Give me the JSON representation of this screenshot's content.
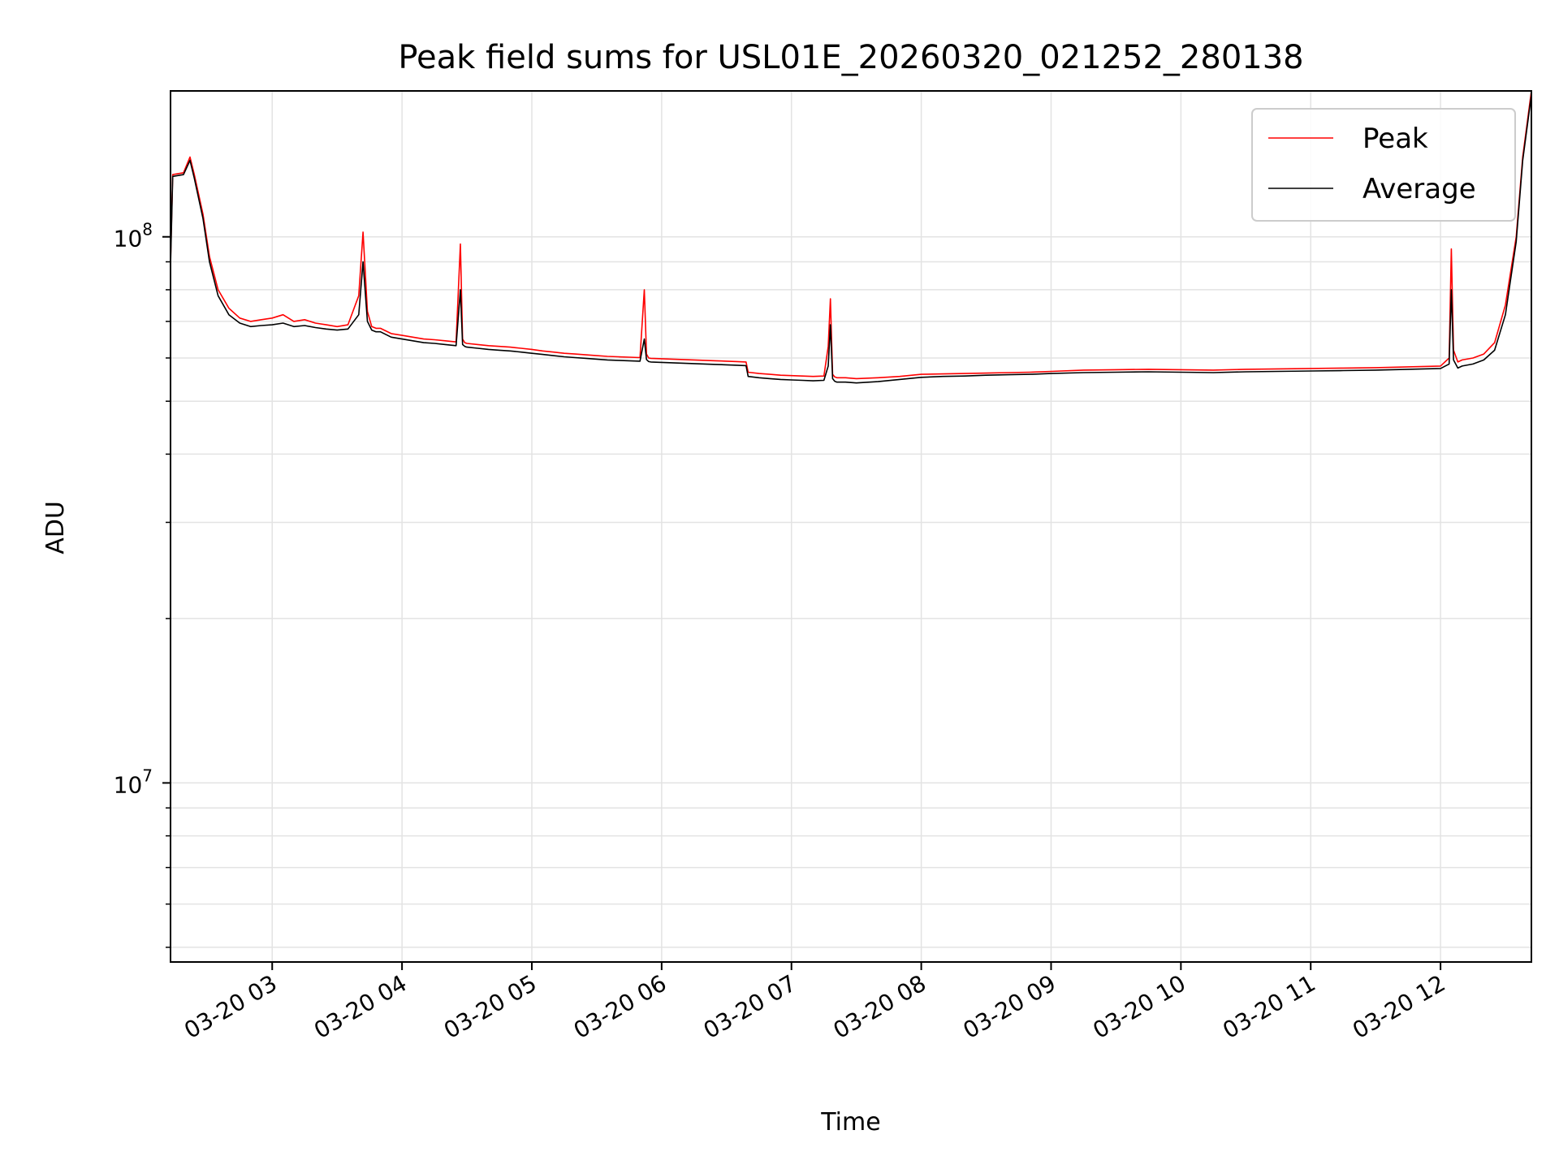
{
  "chart_data": {
    "type": "line",
    "title": "Peak field sums for USL01E_20260320_021252_280138",
    "xlabel": "Time",
    "ylabel": "ADU",
    "x_axis": {
      "kind": "datetime",
      "range": [
        "2026-03-20T02:13",
        "2026-03-20T12:42"
      ],
      "tick_values": [
        "2026-03-20T03:00",
        "2026-03-20T04:00",
        "2026-03-20T05:00",
        "2026-03-20T06:00",
        "2026-03-20T07:00",
        "2026-03-20T08:00",
        "2026-03-20T09:00",
        "2026-03-20T10:00",
        "2026-03-20T11:00",
        "2026-03-20T12:00"
      ],
      "tick_labels": [
        "03-20 03",
        "03-20 04",
        "03-20 05",
        "03-20 06",
        "03-20 07",
        "03-20 08",
        "03-20 09",
        "03-20 10",
        "03-20 11",
        "03-20 12"
      ]
    },
    "y_axis": {
      "scale": "log",
      "range": [
        4700000,
        185000000
      ],
      "major_ticks": [
        10000000,
        100000000
      ],
      "major_tick_labels": [
        {
          "base": "10",
          "exp": "7"
        },
        {
          "base": "10",
          "exp": "8"
        }
      ]
    },
    "grid": true,
    "legend": {
      "placement": "upper right",
      "entries": [
        {
          "label": "Peak",
          "color": "#ff0000"
        },
        {
          "label": "Average",
          "color": "#000000"
        }
      ]
    },
    "series": [
      {
        "name": "Peak",
        "color": "#ff0000",
        "x": [
          "02:13",
          "02:14",
          "02:19",
          "02:22",
          "02:24",
          "02:28",
          "02:31",
          "02:35",
          "02:40",
          "02:45",
          "02:50",
          "02:55",
          "03:00",
          "03:05",
          "03:10",
          "03:15",
          "03:20",
          "03:25",
          "03:30",
          "03:35",
          "03:40",
          "03:42",
          "03:44",
          "03:46",
          "03:48",
          "03:50",
          "03:55",
          "04:00",
          "04:05",
          "04:10",
          "04:15",
          "04:20",
          "04:25",
          "04:27",
          "04:28",
          "04:29",
          "04:30",
          "04:35",
          "04:40",
          "04:45",
          "04:50",
          "04:55",
          "05:00",
          "05:05",
          "05:10",
          "05:15",
          "05:20",
          "05:25",
          "05:30",
          "05:35",
          "05:40",
          "05:45",
          "05:50",
          "05:52",
          "05:53",
          "05:54",
          "05:55",
          "06:00",
          "06:05",
          "06:10",
          "06:15",
          "06:20",
          "06:25",
          "06:30",
          "06:35",
          "06:39",
          "06:40",
          "06:45",
          "06:50",
          "06:55",
          "07:00",
          "07:05",
          "07:10",
          "07:15",
          "07:17",
          "07:18",
          "07:19",
          "07:20",
          "07:21",
          "07:25",
          "07:30",
          "07:40",
          "07:50",
          "08:00",
          "08:10",
          "08:20",
          "08:30",
          "08:40",
          "08:50",
          "09:00",
          "09:15",
          "09:30",
          "09:45",
          "10:00",
          "10:15",
          "10:30",
          "10:45",
          "11:00",
          "11:15",
          "11:30",
          "11:45",
          "12:00",
          "12:04",
          "12:05",
          "12:06",
          "12:08",
          "12:10",
          "12:15",
          "12:20",
          "12:25",
          "12:30",
          "12:35",
          "12:38",
          "12:42"
        ],
        "values": [
          90000000,
          130000000,
          131000000,
          140000000,
          130000000,
          110000000,
          92000000,
          80000000,
          74000000,
          71000000,
          70000000,
          70500000,
          71000000,
          72000000,
          70000000,
          70500000,
          69500000,
          69000000,
          68500000,
          69000000,
          78000000,
          102000000,
          73000000,
          68500000,
          68000000,
          68000000,
          66500000,
          66000000,
          65500000,
          65000000,
          64800000,
          64500000,
          64200000,
          97000000,
          65000000,
          64000000,
          63800000,
          63500000,
          63200000,
          63000000,
          62800000,
          62500000,
          62200000,
          61800000,
          61500000,
          61200000,
          61000000,
          60800000,
          60600000,
          60400000,
          60300000,
          60200000,
          60100000,
          80000000,
          61000000,
          60000000,
          59900000,
          59800000,
          59700000,
          59600000,
          59500000,
          59400000,
          59300000,
          59200000,
          59100000,
          59000000,
          56500000,
          56200000,
          56000000,
          55800000,
          55700000,
          55600000,
          55500000,
          55600000,
          63000000,
          77000000,
          56000000,
          55400000,
          55200000,
          55200000,
          55000000,
          55200000,
          55500000,
          56000000,
          56100000,
          56200000,
          56300000,
          56400000,
          56500000,
          56700000,
          57000000,
          57100000,
          57200000,
          57100000,
          57000000,
          57200000,
          57300000,
          57400000,
          57500000,
          57600000,
          57800000,
          58000000,
          60000000,
          95000000,
          62000000,
          59000000,
          59500000,
          60000000,
          61000000,
          64000000,
          75000000,
          100000000,
          140000000,
          185000000
        ]
      },
      {
        "name": "Average",
        "color": "#000000",
        "x": [
          "02:13",
          "02:14",
          "02:19",
          "02:22",
          "02:24",
          "02:28",
          "02:31",
          "02:35",
          "02:40",
          "02:45",
          "02:50",
          "02:55",
          "03:00",
          "03:05",
          "03:10",
          "03:15",
          "03:20",
          "03:25",
          "03:30",
          "03:35",
          "03:40",
          "03:42",
          "03:44",
          "03:46",
          "03:48",
          "03:50",
          "03:55",
          "04:00",
          "04:05",
          "04:10",
          "04:15",
          "04:20",
          "04:25",
          "04:27",
          "04:28",
          "04:29",
          "04:30",
          "04:35",
          "04:40",
          "04:45",
          "04:50",
          "04:55",
          "05:00",
          "05:05",
          "05:10",
          "05:15",
          "05:20",
          "05:25",
          "05:30",
          "05:35",
          "05:40",
          "05:45",
          "05:50",
          "05:52",
          "05:53",
          "05:54",
          "05:55",
          "06:00",
          "06:05",
          "06:10",
          "06:15",
          "06:20",
          "06:25",
          "06:30",
          "06:35",
          "06:39",
          "06:40",
          "06:45",
          "06:50",
          "06:55",
          "07:00",
          "07:05",
          "07:10",
          "07:15",
          "07:17",
          "07:18",
          "07:19",
          "07:20",
          "07:21",
          "07:25",
          "07:30",
          "07:40",
          "07:50",
          "08:00",
          "08:10",
          "08:20",
          "08:30",
          "08:40",
          "08:50",
          "09:00",
          "09:15",
          "09:30",
          "09:45",
          "10:00",
          "10:15",
          "10:30",
          "10:45",
          "11:00",
          "11:15",
          "11:30",
          "11:45",
          "12:00",
          "12:04",
          "12:05",
          "12:06",
          "12:08",
          "12:10",
          "12:15",
          "12:20",
          "12:25",
          "12:30",
          "12:35",
          "12:38",
          "12:42"
        ],
        "values": [
          88000000,
          129000000,
          130000000,
          138000000,
          128000000,
          108000000,
          90000000,
          78000000,
          72000000,
          69500000,
          68500000,
          68800000,
          69000000,
          69500000,
          68500000,
          68800000,
          68200000,
          67800000,
          67500000,
          67800000,
          72000000,
          90000000,
          70000000,
          67500000,
          67000000,
          67000000,
          65500000,
          65000000,
          64500000,
          64000000,
          63800000,
          63500000,
          63200000,
          80000000,
          63500000,
          63000000,
          62800000,
          62500000,
          62200000,
          62000000,
          61800000,
          61500000,
          61200000,
          60900000,
          60600000,
          60300000,
          60100000,
          59900000,
          59700000,
          59500000,
          59400000,
          59300000,
          59200000,
          65000000,
          59600000,
          59100000,
          59000000,
          58900000,
          58800000,
          58700000,
          58600000,
          58500000,
          58400000,
          58300000,
          58200000,
          58100000,
          55500000,
          55200000,
          55000000,
          54800000,
          54700000,
          54600000,
          54500000,
          54600000,
          58000000,
          69000000,
          55000000,
          54400000,
          54200000,
          54200000,
          54000000,
          54300000,
          54800000,
          55300000,
          55500000,
          55600000,
          55800000,
          55900000,
          56000000,
          56200000,
          56400000,
          56500000,
          56600000,
          56500000,
          56400000,
          56600000,
          56700000,
          56800000,
          56900000,
          57000000,
          57200000,
          57400000,
          58500000,
          80000000,
          59500000,
          57500000,
          58000000,
          58500000,
          59500000,
          62000000,
          72000000,
          98000000,
          138000000,
          182000000
        ]
      }
    ]
  }
}
